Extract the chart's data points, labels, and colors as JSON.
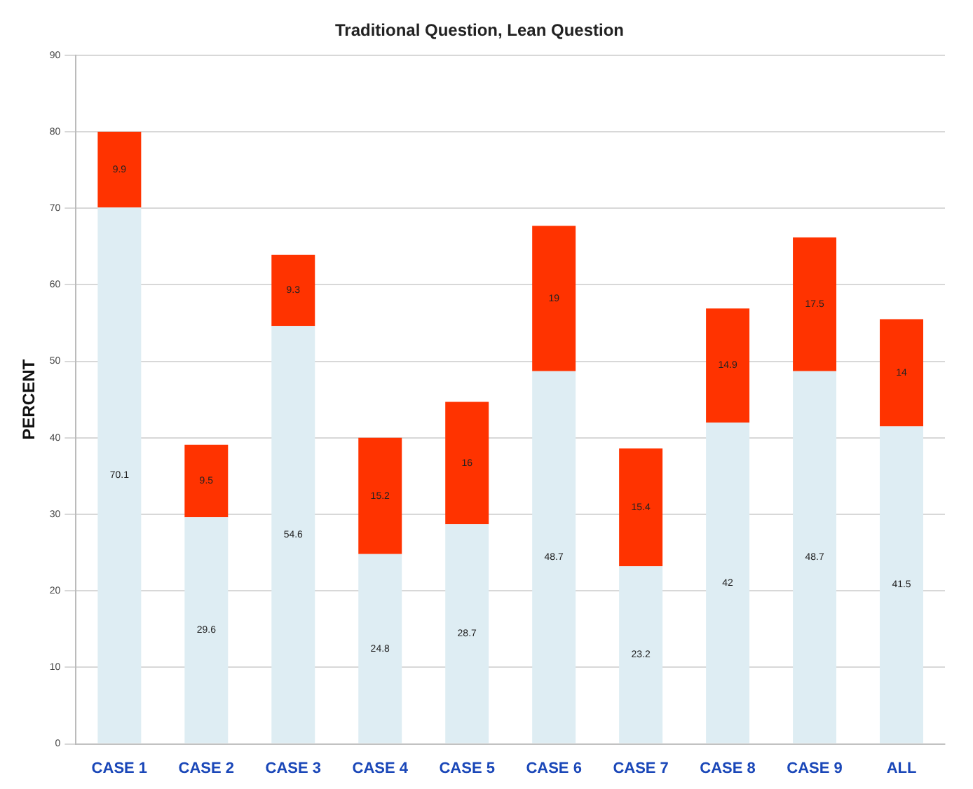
{
  "chart_data": {
    "type": "bar",
    "title": "Traditional Question, Lean Question",
    "ylabel": "PERCENT",
    "categories": [
      "CASE 1",
      "CASE 2",
      "CASE 3",
      "CASE 4",
      "CASE 5",
      "CASE 6",
      "CASE 7",
      "CASE 8",
      "CASE 9",
      "ALL"
    ],
    "stacked": true,
    "series": [
      {
        "color": "#deedf3",
        "values": [
          70.1,
          29.6,
          54.6,
          24.8,
          28.7,
          48.7,
          23.2,
          42,
          48.7,
          41.5
        ]
      },
      {
        "color": "#ff3300",
        "values": [
          9.9,
          9.5,
          9.3,
          15.2,
          16.0,
          19,
          15.4,
          14.9,
          17.5,
          14.0
        ]
      }
    ],
    "ylim": [
      0,
      90
    ],
    "yticks": [
      0,
      10,
      20,
      30,
      40,
      50,
      60,
      70,
      80,
      90
    ],
    "grid": "y",
    "legend": false,
    "data_labels": true
  }
}
